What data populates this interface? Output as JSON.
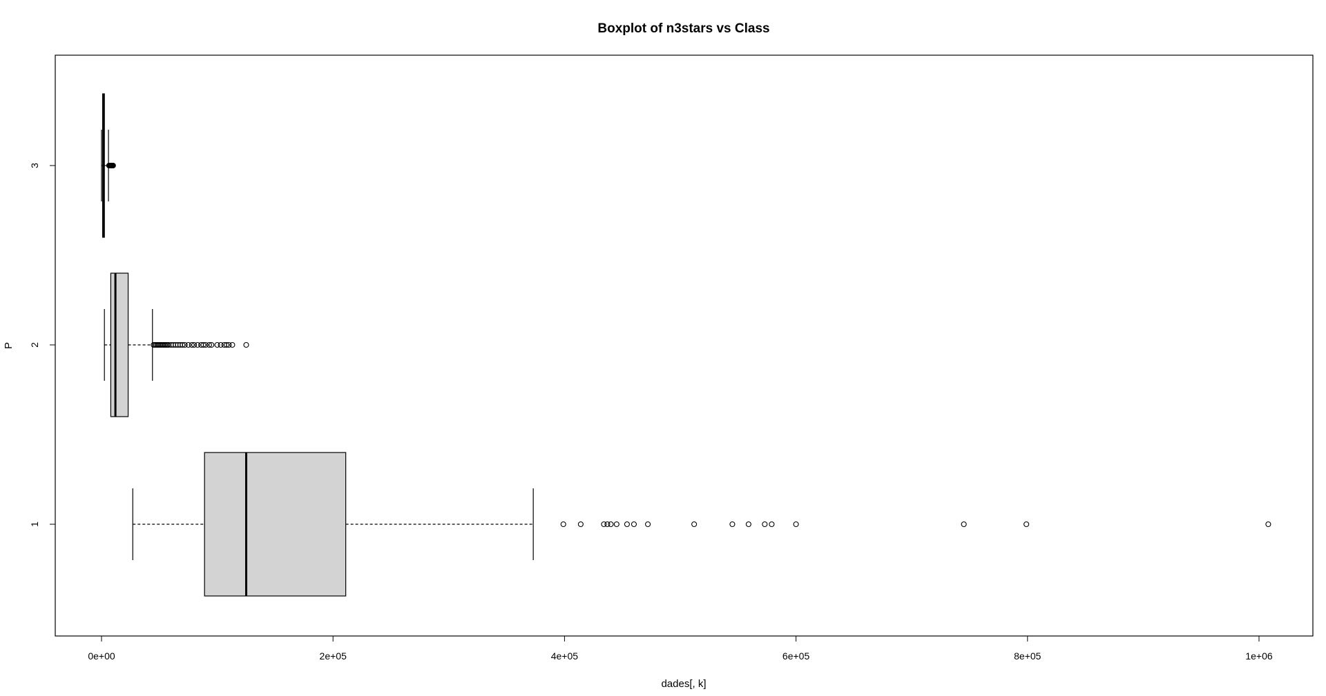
{
  "chart_data": {
    "type": "boxplot",
    "orientation": "horizontal",
    "title": "Boxplot of n3stars vs Class",
    "xlabel": "dades[, k]",
    "ylabel": "P",
    "xlim": [
      -40000,
      1050000
    ],
    "x_ticks": [
      0,
      200000,
      400000,
      600000,
      800000,
      1000000
    ],
    "x_tick_labels": [
      "0e+00",
      "2e+05",
      "4e+05",
      "6e+05",
      "8e+05",
      "1e+06"
    ],
    "categories": [
      "1",
      "2",
      "3"
    ],
    "box_fill": "#d3d3d3",
    "groups": [
      {
        "category": "1",
        "whisker_low": 27000,
        "q1": 89000,
        "median": 125000,
        "q3": 211000,
        "whisker_high": 373000,
        "outliers": [
          399000,
          414000,
          434000,
          437000,
          440000,
          445000,
          454000,
          460000,
          472000,
          512000,
          545000,
          559000,
          573000,
          579000,
          600000,
          745000,
          799000,
          1008000
        ]
      },
      {
        "category": "2",
        "whisker_low": 2500,
        "q1": 8000,
        "median": 12000,
        "q3": 23000,
        "whisker_high": 44000,
        "outliers": [
          45000,
          46000,
          47000,
          48000,
          49000,
          50000,
          51000,
          52000,
          53000,
          54000,
          55000,
          56000,
          57000,
          58000,
          60000,
          62000,
          64000,
          66000,
          68000,
          70000,
          72000,
          75000,
          78000,
          80000,
          83000,
          86000,
          88000,
          90000,
          93000,
          95000,
          100000,
          103000,
          106000,
          108000,
          110000,
          113000,
          125000
        ]
      },
      {
        "category": "3",
        "whisker_low": 0,
        "q1": 1000,
        "median": 1500,
        "q3": 2500,
        "whisker_high": 6000,
        "outliers": [
          6500,
          7000,
          7500,
          8000,
          8500,
          9000,
          9500,
          10000
        ]
      }
    ]
  }
}
